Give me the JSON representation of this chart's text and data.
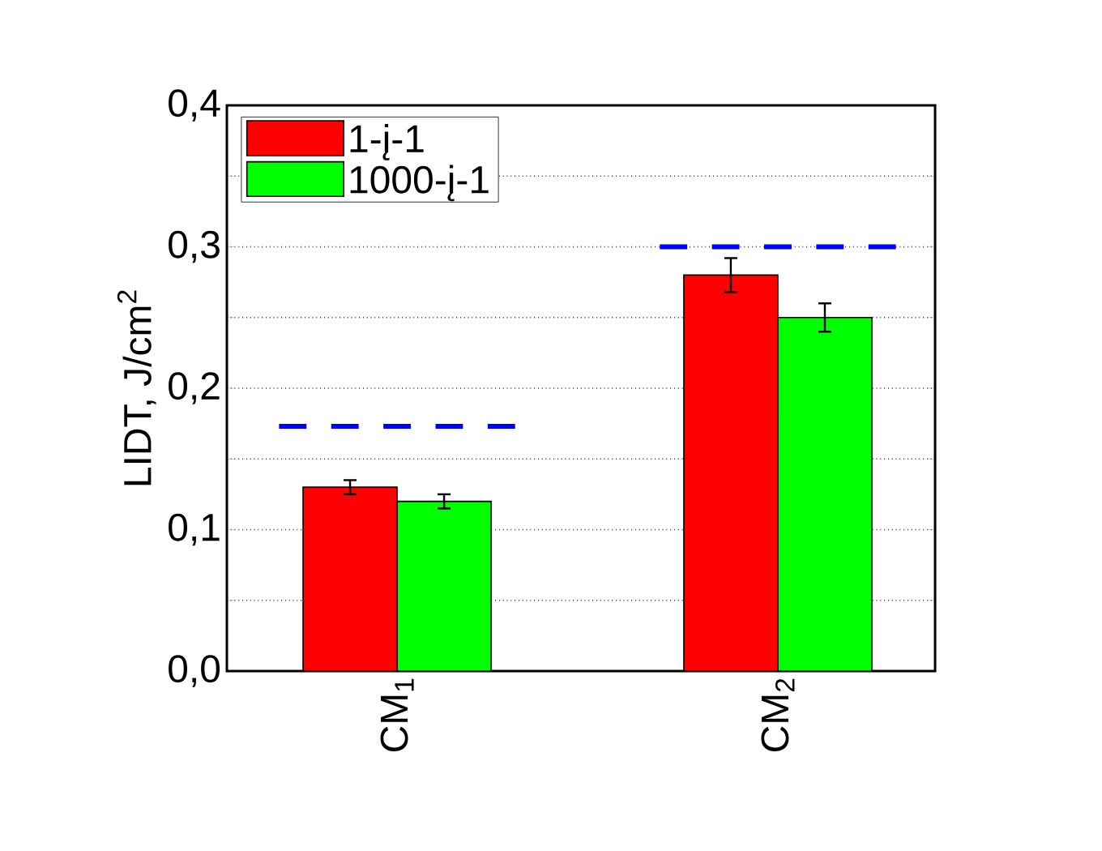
{
  "chart_data": {
    "type": "bar",
    "ylabel": "LIDT, J/cm$^{2}$",
    "categories": [
      "CM$_{1}$",
      "CM$_{2}$"
    ],
    "series": [
      {
        "name": "1-į-1",
        "color": "#ff0000",
        "values": [
          0.13,
          0.28
        ],
        "errors": [
          0.005,
          0.012
        ]
      },
      {
        "name": "1000-į-1",
        "color": "#00ff00",
        "values": [
          0.12,
          0.25
        ],
        "errors": [
          0.005,
          0.01
        ]
      }
    ],
    "ref_lines": [
      {
        "axis": "y",
        "value": 0.173,
        "color": "#0000ff",
        "line_style": "dashed"
      },
      {
        "axis": "y",
        "value": 0.3,
        "color": "#0000ff",
        "line_style": "dashed"
      }
    ],
    "ylim": [
      0,
      0.4
    ],
    "yticks": [
      {
        "value": 0,
        "label": "0,0"
      },
      {
        "value": 0.05,
        "label": null
      },
      {
        "value": 0.1,
        "label": "0,1"
      },
      {
        "value": 0.15,
        "label": null
      },
      {
        "value": 0.2,
        "label": "0,2"
      },
      {
        "value": 0.25,
        "label": null
      },
      {
        "value": 0.3,
        "label": "0,3"
      },
      {
        "value": 0.35,
        "label": null
      },
      {
        "value": 0.4,
        "label": "0,4"
      }
    ],
    "grid": "y",
    "legend": "top left"
  }
}
